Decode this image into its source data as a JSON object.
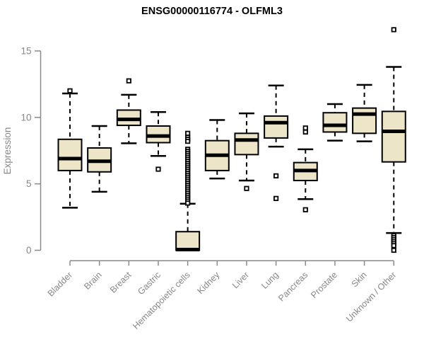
{
  "chart_data": {
    "type": "boxplot",
    "title": "ENSG00000116774 - OLFML3",
    "xlabel": "",
    "ylabel": "Expression",
    "yticks": [
      0,
      5,
      10,
      15
    ],
    "ylim": [
      -0.5,
      16.8
    ],
    "grid": false,
    "legend": null,
    "categories": [
      "Bladder",
      "Brain",
      "Breast",
      "Gastric",
      "Hematopoietic cells",
      "Kidney",
      "Liver",
      "Lung",
      "Pancreas",
      "Prostate",
      "Skin",
      "Unknown / Other"
    ],
    "boxes": [
      {
        "category": "Bladder",
        "q1": 6.0,
        "median": 6.9,
        "q3": 8.35,
        "whisker_low": 3.2,
        "whisker_high": 11.8,
        "outliers": [
          12.0
        ]
      },
      {
        "category": "Brain",
        "q1": 5.9,
        "median": 6.7,
        "q3": 7.7,
        "whisker_low": 4.4,
        "whisker_high": 9.35,
        "outliers": []
      },
      {
        "category": "Breast",
        "q1": 9.4,
        "median": 9.85,
        "q3": 10.55,
        "whisker_low": 8.05,
        "whisker_high": 11.7,
        "outliers": [
          12.75
        ]
      },
      {
        "category": "Gastric",
        "q1": 8.1,
        "median": 8.6,
        "q3": 9.35,
        "whisker_low": 7.1,
        "whisker_high": 10.4,
        "outliers": [
          6.1
        ]
      },
      {
        "category": "Hematopoietic cells",
        "q1": 0.0,
        "median": 0.05,
        "q3": 1.4,
        "whisker_low": 0.0,
        "whisker_high": 3.5,
        "outliers": [
          8.8,
          8.5,
          8.35,
          8.2,
          7.6,
          7.45,
          7.3,
          7.15,
          7.0,
          6.85,
          6.7,
          6.55,
          6.4,
          6.25,
          6.1,
          5.95,
          5.8,
          5.65,
          5.5,
          5.35,
          5.2,
          5.05,
          4.9,
          4.75,
          4.6,
          4.45,
          4.3,
          4.15,
          4.0,
          3.85,
          3.7,
          3.55
        ]
      },
      {
        "category": "Kidney",
        "q1": 6.0,
        "median": 7.15,
        "q3": 8.25,
        "whisker_low": 5.4,
        "whisker_high": 9.8,
        "outliers": []
      },
      {
        "category": "Liver",
        "q1": 7.2,
        "median": 8.3,
        "q3": 8.8,
        "whisker_low": 5.25,
        "whisker_high": 10.3,
        "outliers": [
          4.65
        ]
      },
      {
        "category": "Lung",
        "q1": 8.45,
        "median": 9.6,
        "q3": 10.1,
        "whisker_low": 7.8,
        "whisker_high": 12.4,
        "outliers": [
          5.6,
          3.9
        ]
      },
      {
        "category": "Pancreas",
        "q1": 5.25,
        "median": 6.0,
        "q3": 6.6,
        "whisker_low": 3.85,
        "whisker_high": 7.6,
        "outliers": [
          9.2,
          8.9,
          3.05
        ]
      },
      {
        "category": "Prostate",
        "q1": 8.9,
        "median": 9.4,
        "q3": 10.35,
        "whisker_low": 8.25,
        "whisker_high": 11.0,
        "outliers": []
      },
      {
        "category": "Skin",
        "q1": 8.8,
        "median": 10.25,
        "q3": 10.7,
        "whisker_low": 8.2,
        "whisker_high": 12.45,
        "outliers": []
      },
      {
        "category": "Unknown / Other",
        "q1": 6.65,
        "median": 8.95,
        "q3": 10.45,
        "whisker_low": 1.3,
        "whisker_high": 13.8,
        "outliers": [
          16.6,
          1.1,
          0.95,
          0.8,
          0.65,
          0.5,
          0.35,
          0.0
        ]
      }
    ],
    "style": {
      "box_fill": "#ECE5C8",
      "box_stroke": "#000000",
      "median_color": "#000000",
      "whisker_color": "#000000",
      "outlier_fill": "#FFFFFF",
      "axis_color": "#8A8A8A",
      "label_color": "#878787",
      "title_color": "#000000",
      "background": "#FFFFFF"
    }
  }
}
